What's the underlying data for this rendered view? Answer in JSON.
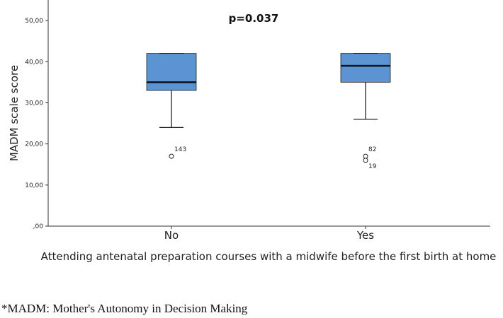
{
  "chart_data": {
    "type": "boxplot",
    "title": "",
    "annotation": "p=0.037",
    "xlabel": "Attending antenatal preparation courses with a midwife before the first birth at home",
    "ylabel": "MADM scale score",
    "ylim": [
      0,
      55
    ],
    "yticks": [
      ",00",
      "10,00",
      "20,00",
      "30,00",
      "40,00",
      "50,00"
    ],
    "ytick_values": [
      0,
      10,
      20,
      30,
      40,
      50
    ],
    "grid": false,
    "box_color": "#5b93d3",
    "categories": [
      "No",
      "Yes"
    ],
    "boxes": [
      {
        "category": "No",
        "min": 24,
        "q1": 33,
        "median": 35,
        "q3": 42,
        "max": 42,
        "outliers": [
          {
            "value": 17,
            "label": "143"
          }
        ]
      },
      {
        "category": "Yes",
        "min": 26,
        "q1": 35,
        "median": 39,
        "q3": 42,
        "max": 42,
        "outliers": [
          {
            "value": 17,
            "label": "82"
          },
          {
            "value": 16,
            "label": "19"
          }
        ]
      }
    ]
  },
  "footnote": "*MADM: Mother's Autonomy in Decision Making"
}
